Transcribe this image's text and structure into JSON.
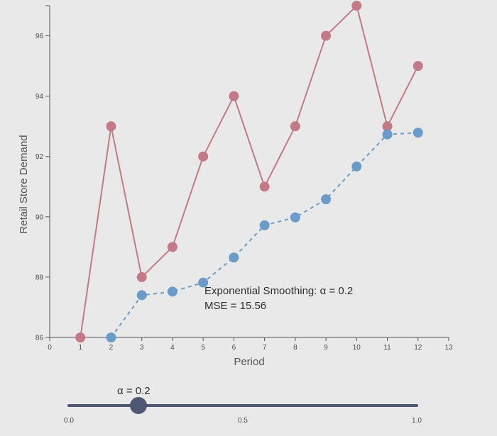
{
  "chart_data": {
    "type": "line",
    "xlabel": "Period",
    "ylabel": "Retail Store Demand",
    "xlim": [
      0,
      13
    ],
    "ylim": [
      86,
      97
    ],
    "x_ticks": [
      "0",
      "1",
      "2",
      "3",
      "4",
      "5",
      "6",
      "7",
      "8",
      "9",
      "10",
      "11",
      "12",
      "13"
    ],
    "y_ticks": [
      "86",
      "88",
      "90",
      "92",
      "94",
      "96"
    ],
    "series": [
      {
        "color": "#c27a86",
        "line_style": "solid",
        "points": [
          [
            1,
            86
          ],
          [
            2,
            93
          ],
          [
            3,
            88
          ],
          [
            4,
            89
          ],
          [
            5,
            92
          ],
          [
            6,
            94
          ],
          [
            7,
            91
          ],
          [
            8,
            93
          ],
          [
            9,
            96
          ],
          [
            10,
            97
          ],
          [
            11,
            93
          ],
          [
            12,
            95
          ]
        ]
      },
      {
        "color": "#6b9bc8",
        "line_style": "dashed",
        "points": [
          [
            2,
            86
          ],
          [
            3,
            87.4
          ],
          [
            4,
            87.52
          ],
          [
            5,
            87.82
          ],
          [
            6,
            88.65
          ],
          [
            7,
            89.72
          ],
          [
            8,
            89.98
          ],
          [
            9,
            90.58
          ],
          [
            10,
            91.67
          ],
          [
            11,
            92.73
          ],
          [
            12,
            92.79
          ]
        ]
      }
    ],
    "annotation": {
      "line1": "Exponential Smoothing: α = 0.2",
      "line2": "MSE = 15.56"
    },
    "grid": false
  },
  "slider": {
    "label": "α = 0.2",
    "value": 0.2,
    "min": 0,
    "max": 1,
    "tick_labels": [
      "0.0",
      "0.5",
      "1.0"
    ],
    "track_color": "#4f5872",
    "handle_color": "#4f5872"
  }
}
